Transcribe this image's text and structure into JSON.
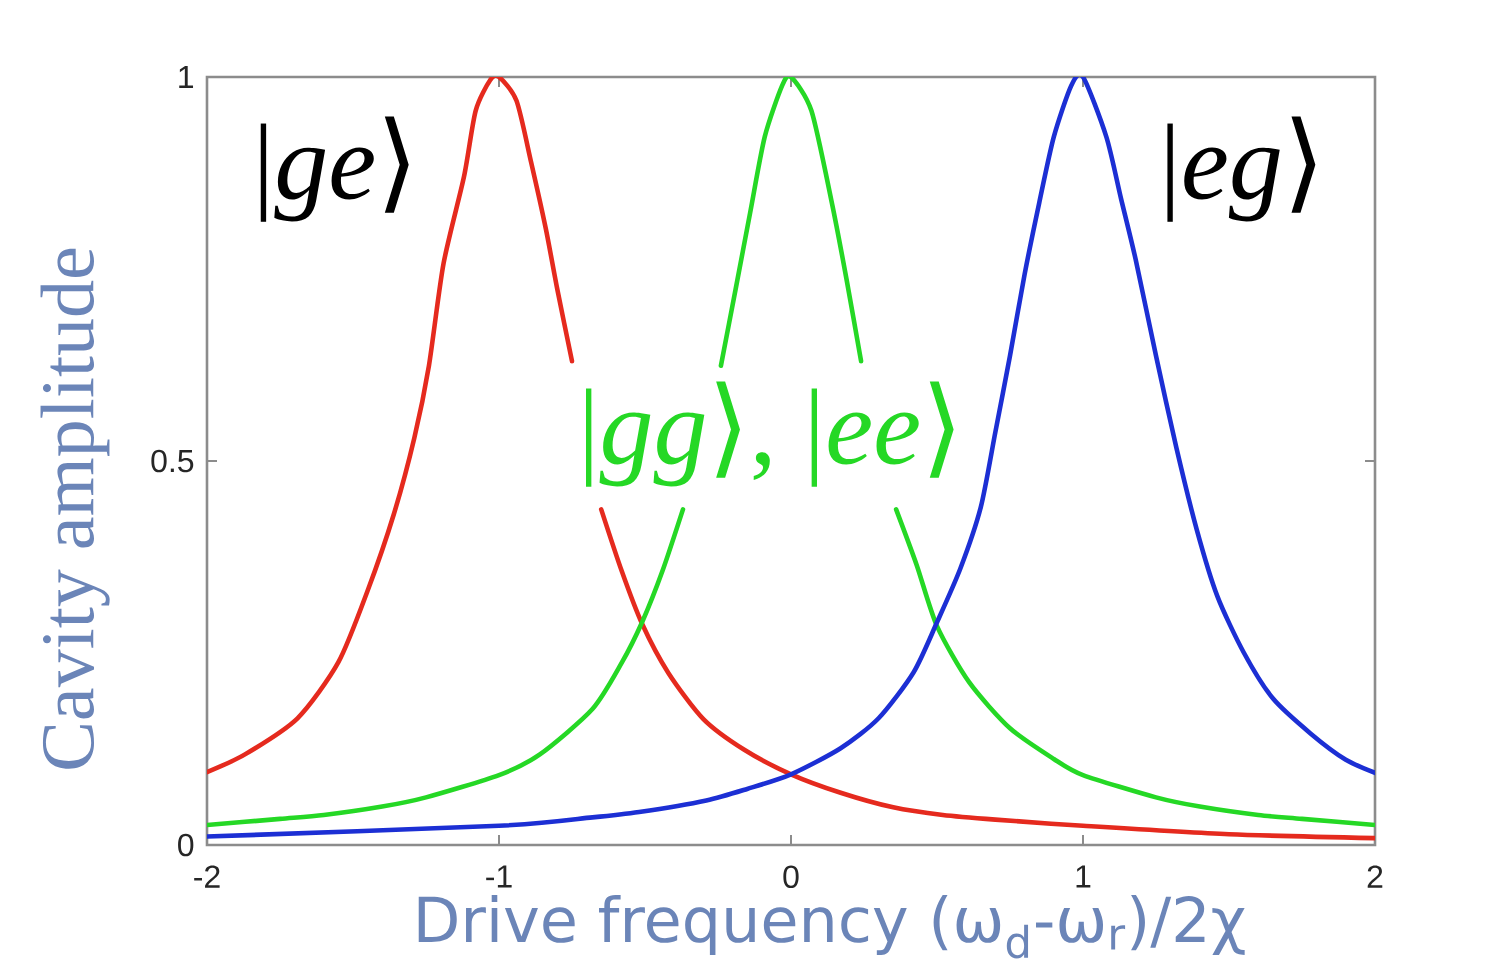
{
  "chart_data": {
    "type": "line",
    "xlabel": "Drive frequency (ω$_{d}$-ω$_{r}$)/2χ",
    "ylabel": "Cavity amplitude",
    "xlim": [
      -2,
      2
    ],
    "ylim": [
      0,
      1
    ],
    "xticks": [
      -2,
      -1,
      0,
      1,
      2
    ],
    "yticks": [
      0,
      0.5,
      1
    ],
    "series": [
      {
        "name": "|*ge*⟩",
        "color": "#e52a1e",
        "x": [
          -2,
          -1.87,
          -1.69,
          -1.55,
          -1.45,
          -1.36,
          -1.29,
          -1.24,
          -1.19,
          -1.12,
          -1.08,
          -1.03,
          -1,
          -0.94,
          -0.89,
          -0.84,
          -0.8,
          -0.75,
          -0.7,
          -0.65,
          -0.58,
          -0.51,
          -0.42,
          -0.3,
          -0.16,
          0,
          0.17,
          0.35,
          0.52,
          0.7,
          1,
          1.5,
          2
        ],
        "values": [
          0.095,
          0.118,
          0.165,
          0.238,
          0.331,
          0.431,
          0.53,
          0.624,
          0.757,
          0.87,
          0.956,
          0.996,
          1,
          0.969,
          0.889,
          0.803,
          0.723,
          0.63,
          null,
          0.437,
          0.357,
          0.288,
          0.224,
          0.164,
          0.124,
          0.092,
          0.068,
          0.049,
          0.039,
          0.033,
          0.025,
          0.014,
          0.009
        ]
      },
      {
        "name": "|*gg*⟩, |*ee*⟩",
        "color": "#25d825",
        "x": [
          -2,
          -1.75,
          -1.6,
          -1.4,
          -1.25,
          -1,
          -0.86,
          -0.68,
          -0.58,
          -0.51,
          -0.44,
          -0.37,
          -0.3,
          -0.24,
          -0.19,
          -0.14,
          -0.09,
          -0.03,
          0,
          0.07,
          0.14,
          0.19,
          0.24,
          0.3,
          0.36,
          0.43,
          0.5,
          0.61,
          0.75,
          0.9,
          1,
          1.25,
          1.4,
          1.6,
          1.75,
          2
        ],
        "values": [
          0.026,
          0.034,
          0.039,
          0.05,
          0.062,
          0.091,
          0.118,
          0.177,
          0.237,
          0.29,
          0.357,
          0.437,
          null,
          0.624,
          0.723,
          0.823,
          0.922,
          0.989,
          1,
          0.956,
          0.836,
          0.737,
          0.63,
          null,
          0.437,
          0.365,
          0.285,
          0.212,
          0.152,
          0.112,
          0.091,
          0.062,
          0.05,
          0.039,
          0.034,
          0.026
        ]
      },
      {
        "name": "|*eg*⟩",
        "color": "#1c2fd4",
        "x": [
          -2,
          -1,
          -0.68,
          -0.52,
          -0.29,
          -0.15,
          0,
          0.17,
          0.3,
          0.42,
          0.5,
          0.58,
          0.65,
          0.7,
          0.75,
          0.8,
          0.85,
          0.9,
          0.96,
          1,
          1.08,
          1.13,
          1.18,
          1.25,
          1.32,
          1.39,
          1.46,
          1.55,
          1.65,
          1.78,
          1.9,
          2
        ],
        "values": [
          0.011,
          0.025,
          0.036,
          0.043,
          0.058,
          0.073,
          0.092,
          0.126,
          0.165,
          0.225,
          0.29,
          0.36,
          0.44,
          0.538,
          0.637,
          0.743,
          0.836,
          0.922,
          0.989,
          1,
          0.922,
          0.842,
          0.763,
          0.637,
          0.517,
          0.41,
          0.324,
          0.251,
          0.191,
          0.145,
          0.111,
          0.094
        ]
      }
    ]
  }
}
